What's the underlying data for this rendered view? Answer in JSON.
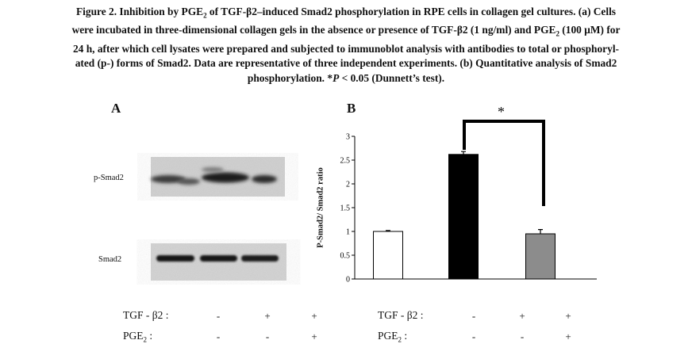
{
  "caption": {
    "figure_label": "Figure 2.",
    "line1_rest": " Inhibition by PGE",
    "sub2": "2",
    "line1_end": " of TGF-β2–induced Smad2 phosphorylation in RPE cells in collagen gel cultures. (a) Cells",
    "line2a": "were incubated in three-dimensional collagen gels in the absence or presence of TGF-β2 (1 ng/ml) and PGE",
    "line2b": " (100 µM) for",
    "line3": "24 h, after which cell lysates were prepared and subjected to immunoblot analysis with antibodies to total or phosphoryl-",
    "line4": "ated (p-) forms of Smad2. Data are representative of three independent experiments. (b) Quantitative analysis of Smad2",
    "line5a": "phosphorylation. *",
    "line5p": "P",
    "line5b": " < 0.05 (Dunnett’s test)."
  },
  "panel_a": {
    "letter": "A",
    "blot_labels": [
      "p-Smad2",
      "Smad2"
    ]
  },
  "panel_b": {
    "letter": "B",
    "significance_mark": "*"
  },
  "treatment_rows": [
    {
      "label": "TGF - β2 :",
      "symbols": [
        "-",
        "+",
        "+"
      ]
    },
    {
      "label": "PGE",
      "label_sub": "2",
      "label_tail": " :",
      "symbols": [
        "-",
        "-",
        "+"
      ]
    }
  ],
  "chart_data": {
    "type": "bar",
    "categories": [
      "TGF-β2 − / PGE2 −",
      "TGF-β2 + / PGE2 −",
      "TGF-β2 + / PGE2 +"
    ],
    "values": [
      1.0,
      2.62,
      0.95
    ],
    "errors": [
      0.02,
      0.06,
      0.09
    ],
    "bar_colors": [
      "#ffffff",
      "#000000",
      "#8c8c8c"
    ],
    "ylabel": "P-Smad2/ Smad2 ratio",
    "xlabel": "",
    "ylim": [
      0,
      3
    ],
    "yticks": [
      0,
      0.5,
      1,
      1.5,
      2,
      2.5,
      3
    ],
    "ytick_labels": [
      "0",
      "0.5",
      "1",
      "1.5",
      "2",
      "2.5",
      "3"
    ],
    "grid": false,
    "annotation": "* between bar 2 and bar 3"
  }
}
